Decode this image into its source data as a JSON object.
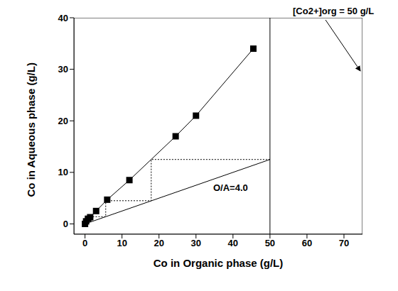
{
  "chart_data": {
    "type": "line",
    "x_label": "Co in Organic phase (g/L)",
    "y_label": "Co in Aqueous phase (g/L)",
    "annotations": [
      "[Co2+]org = 50 g/L",
      "O/A=4.0"
    ],
    "xlim": [
      -3,
      75
    ],
    "xticks": [
      0,
      10,
      20,
      30,
      40,
      50,
      60,
      70
    ],
    "ylim": [
      -2,
      40
    ],
    "yticks": [
      0,
      10,
      20,
      30,
      40
    ],
    "grid": false,
    "series": [
      {
        "color": "#000000",
        "marker": "square",
        "line_style": "solid",
        "x": [
          0,
          0.3,
          0.8,
          1.4,
          3,
          6,
          12,
          24.5,
          30,
          45.5
        ],
        "values": [
          0,
          0.5,
          1,
          1.3,
          2.5,
          4.7,
          8.5,
          17,
          21,
          34
        ]
      },
      {
        "color": "#000000",
        "marker": "none",
        "line_style": "solid",
        "x": [
          0,
          50
        ],
        "values": [
          0,
          12.5
        ]
      },
      {
        "color": "#000000",
        "marker": "none",
        "line_style": "solid",
        "x": [
          50,
          50
        ],
        "values": [
          -2,
          40
        ]
      },
      {
        "color": "#000000",
        "marker": "none",
        "line_style": "dotted",
        "x": [
          50,
          17.9,
          17.9,
          5.6,
          5.6,
          1.7,
          1.7
        ],
        "values": [
          12.5,
          12.5,
          4.5,
          4.5,
          1.4,
          1.4,
          0.4
        ]
      }
    ]
  }
}
